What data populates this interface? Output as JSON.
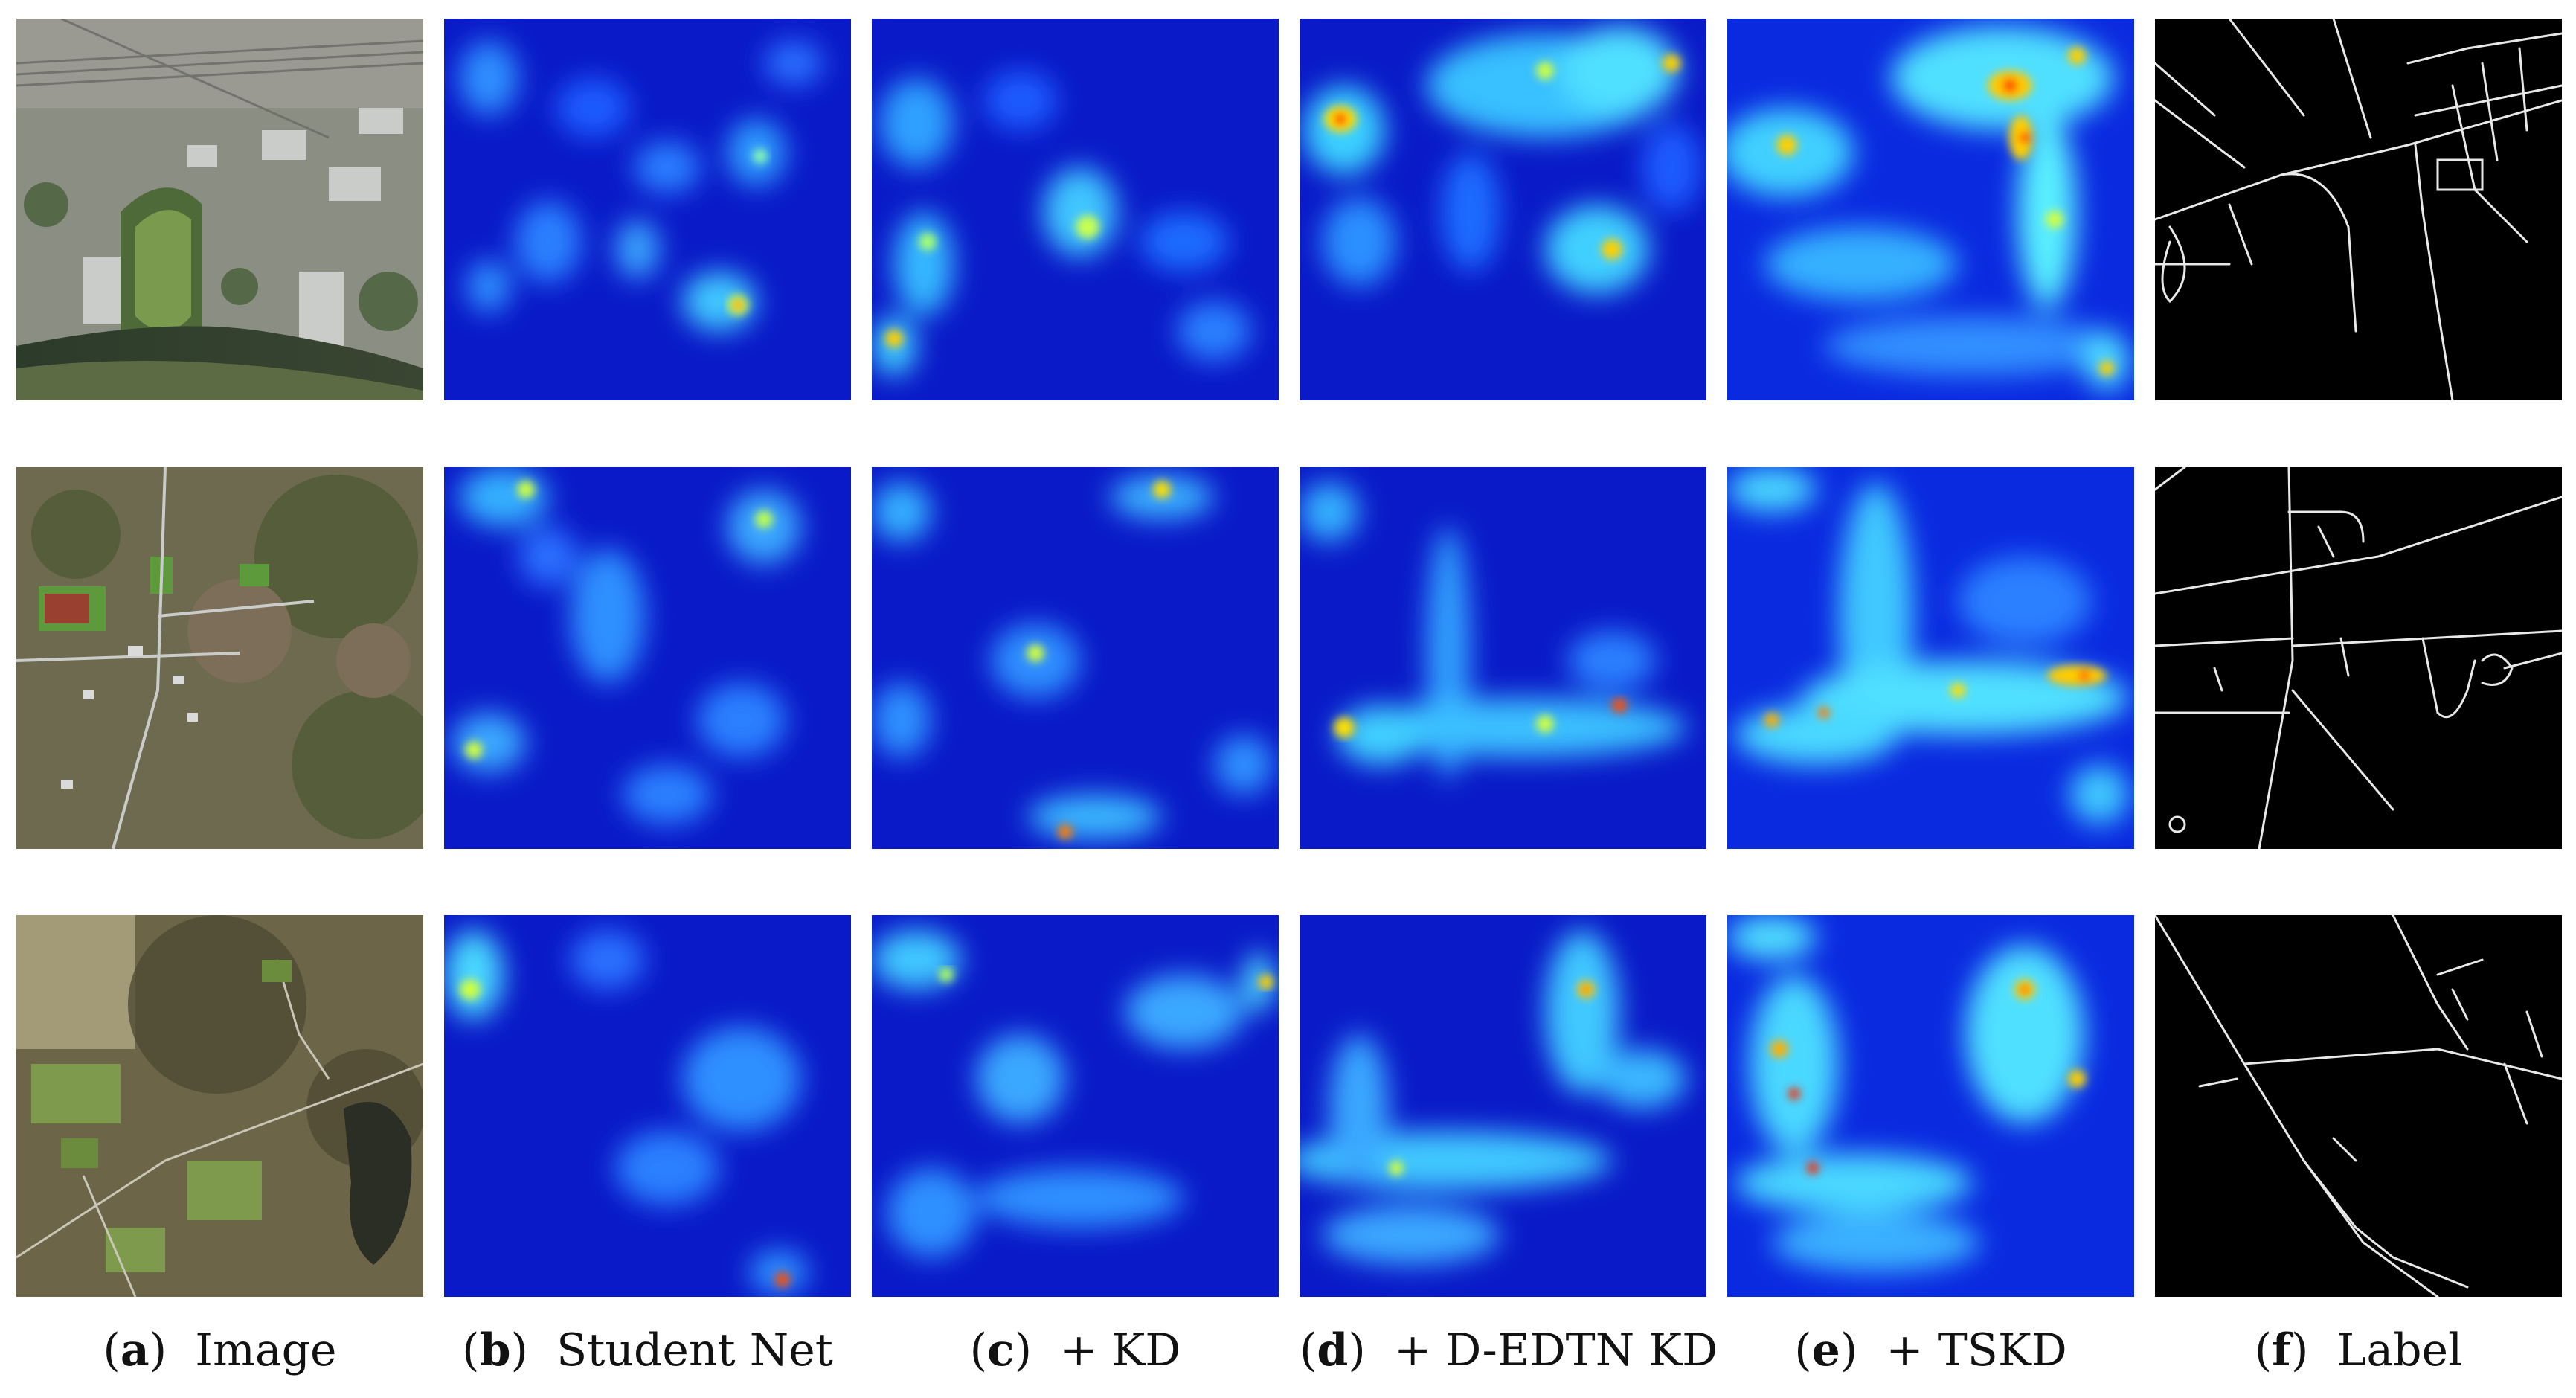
{
  "figure": {
    "columns": [
      {
        "letter": "a",
        "label": "Image"
      },
      {
        "letter": "b",
        "label": "Student Net"
      },
      {
        "letter": "c",
        "label": "+ KD"
      },
      {
        "letter": "d",
        "label": "+ D-EDTN KD"
      },
      {
        "letter": "e",
        "label": "+ TSKD"
      },
      {
        "letter": "f",
        "label": "Label"
      }
    ],
    "rows": 3,
    "colormap": [
      "#00007f",
      "#0000ff",
      "#00ffff",
      "#ffff00",
      "#ff0000"
    ]
  }
}
